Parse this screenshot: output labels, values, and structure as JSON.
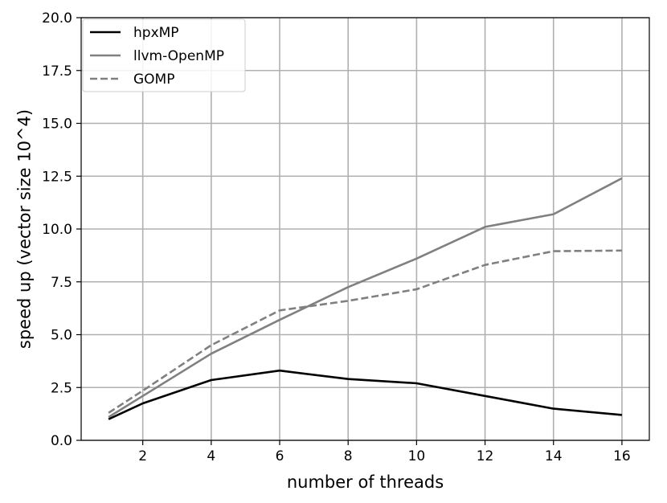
{
  "chart_data": {
    "type": "line",
    "xlabel": "number of threads",
    "ylabel": "speed up (vector size 10^4)",
    "x": [
      1,
      2,
      4,
      6,
      8,
      10,
      12,
      14,
      16
    ],
    "xticks": [
      2,
      4,
      6,
      8,
      10,
      12,
      14,
      16
    ],
    "xtick_labels": [
      "2",
      "4",
      "6",
      "8",
      "10",
      "12",
      "14",
      "16"
    ],
    "xlim": [
      0.2,
      16.8
    ],
    "ylim": [
      0,
      20
    ],
    "yticks": [
      0,
      2.5,
      5,
      7.5,
      10,
      12.5,
      15,
      17.5,
      20
    ],
    "ytick_labels": [
      "0.0",
      "2.5",
      "5.0",
      "7.5",
      "10.0",
      "12.5",
      "15.0",
      "17.5",
      "20.0"
    ],
    "grid": true,
    "legend_position": "top-left",
    "series": [
      {
        "name": "hpxMP",
        "color": "#000000",
        "dash": "solid",
        "values": [
          1.0,
          1.75,
          2.85,
          3.3,
          2.9,
          2.7,
          2.1,
          1.5,
          1.2
        ]
      },
      {
        "name": "llvm-OpenMP",
        "color": "#808080",
        "dash": "solid",
        "values": [
          1.1,
          2.1,
          4.1,
          5.7,
          7.25,
          8.6,
          10.1,
          10.7,
          12.4
        ]
      },
      {
        "name": "GOMP",
        "color": "#808080",
        "dash": "dashed",
        "values": [
          1.3,
          2.35,
          4.5,
          6.15,
          6.6,
          7.15,
          8.3,
          8.95,
          8.98
        ]
      }
    ]
  }
}
